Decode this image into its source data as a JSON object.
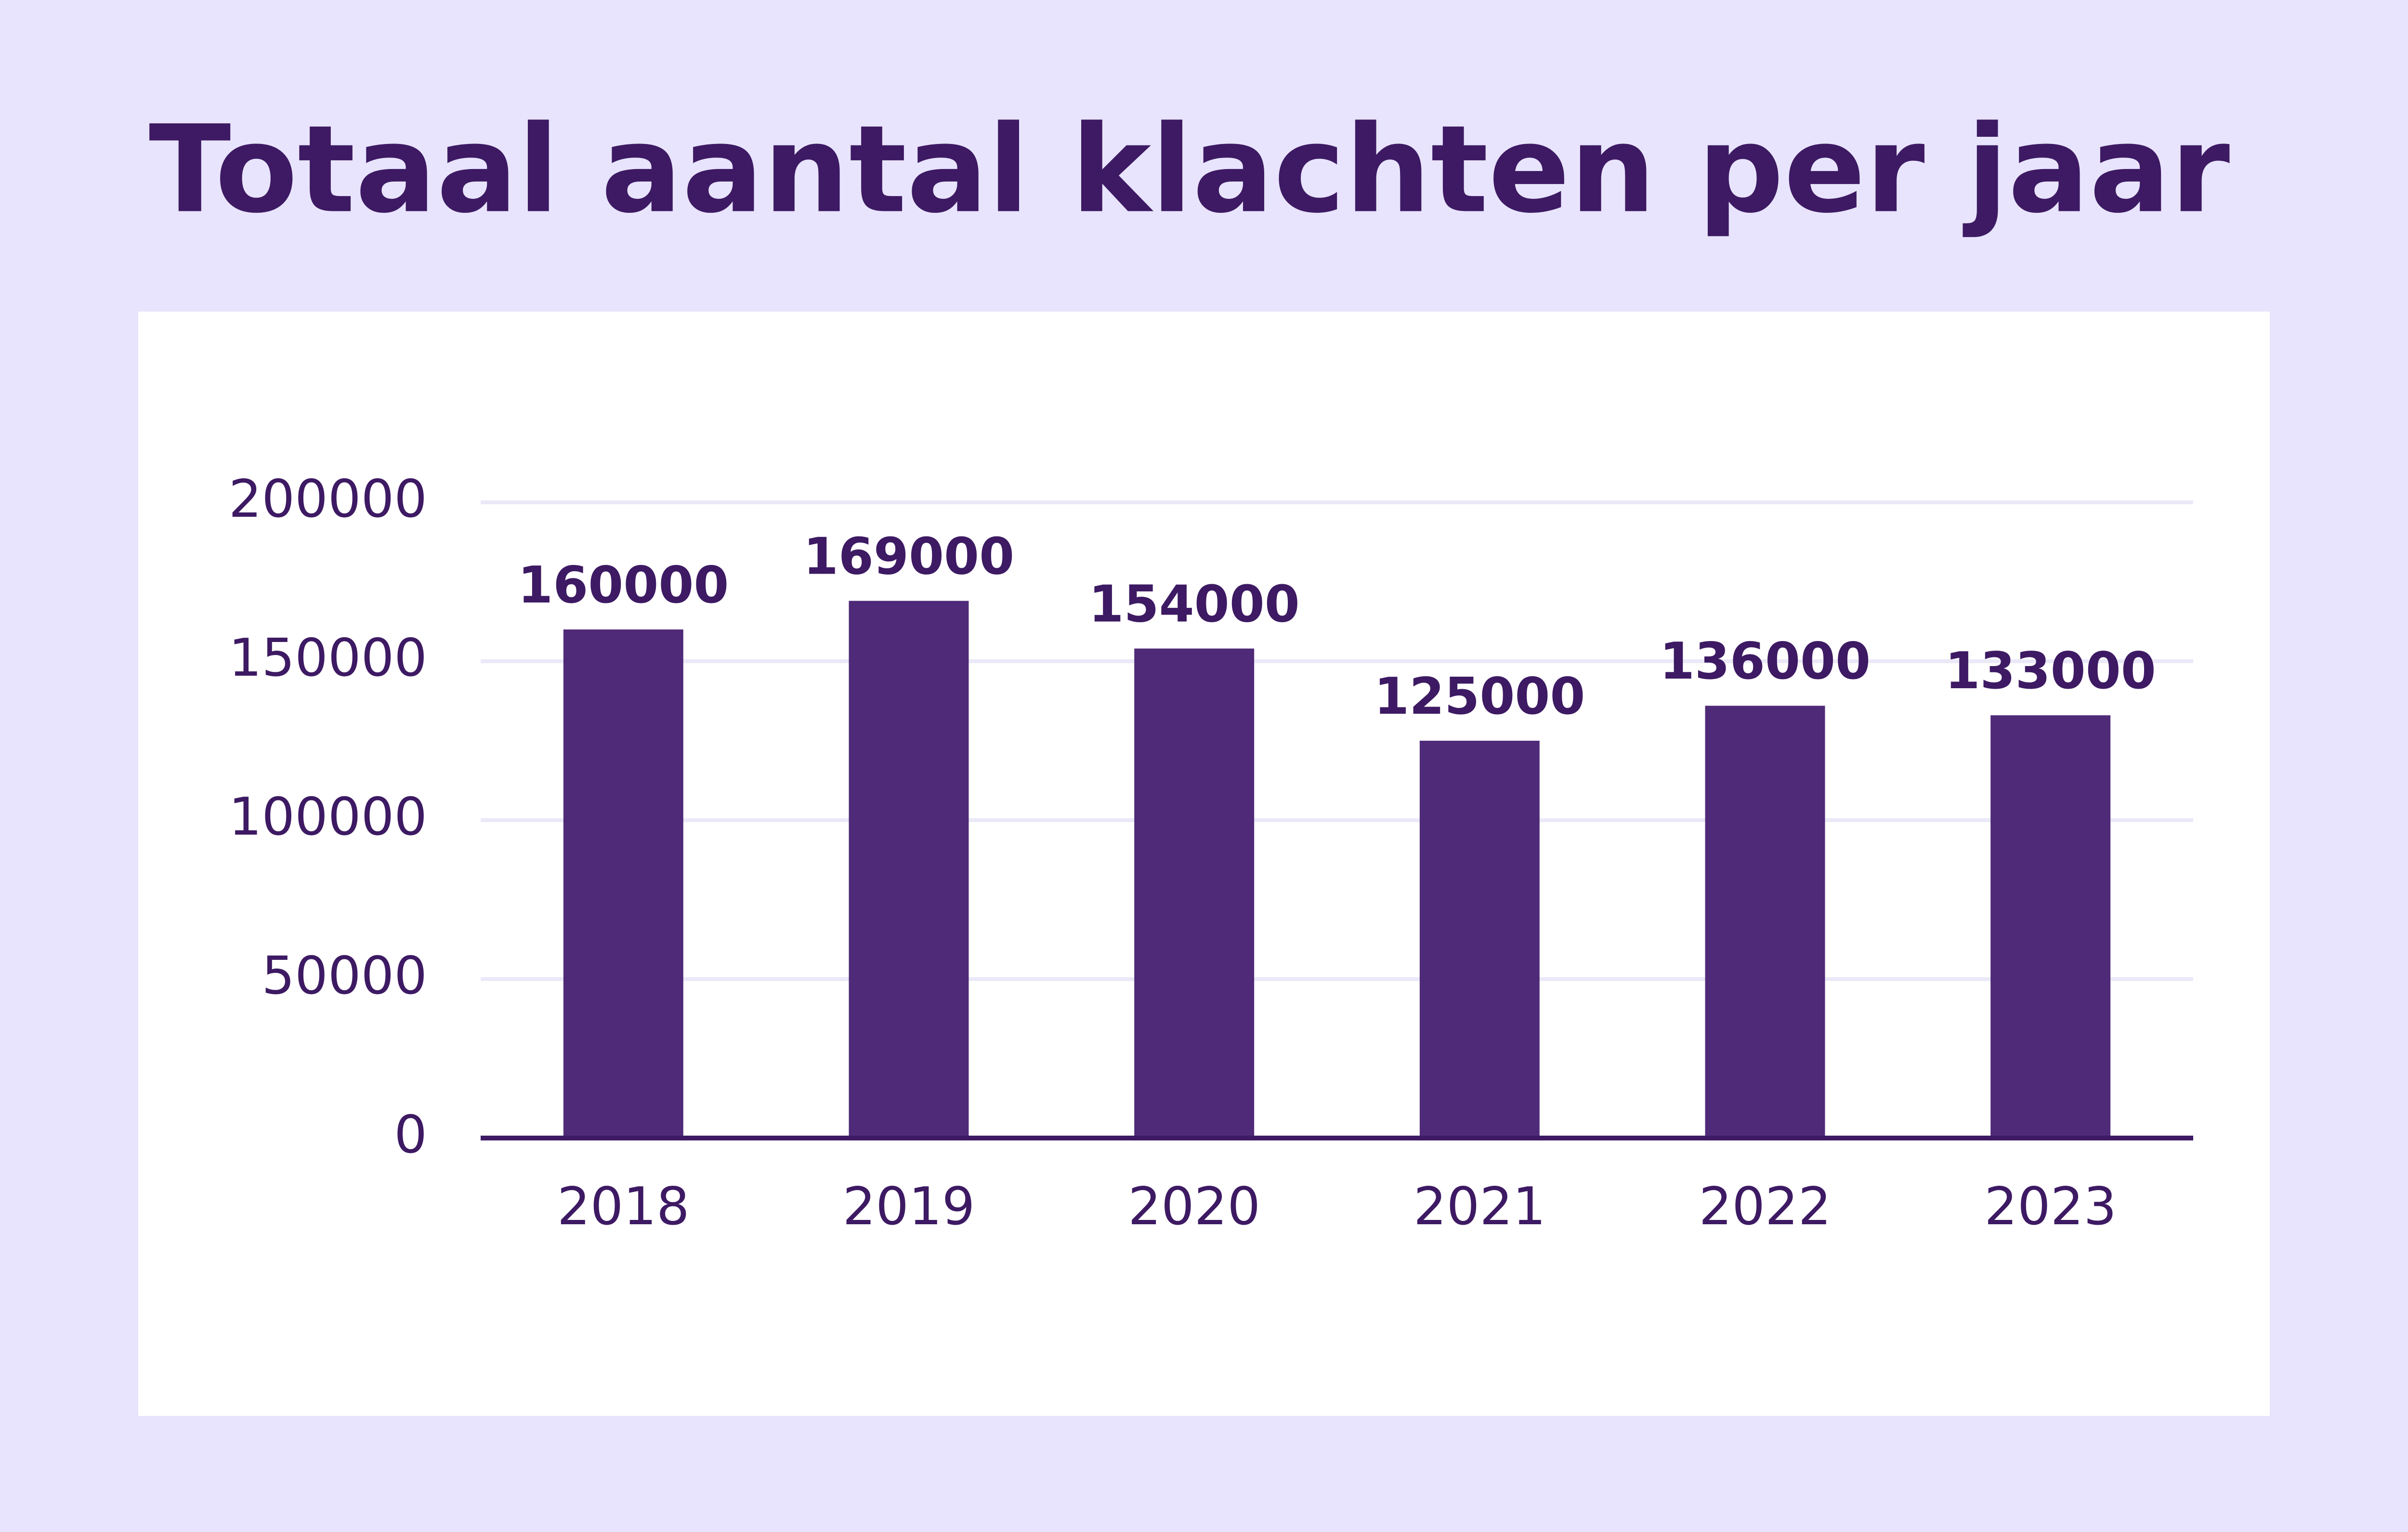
{
  "chart_data": {
    "type": "bar",
    "title": "Totaal aantal klachten per jaar",
    "categories": [
      "2018",
      "2019",
      "2020",
      "2021",
      "2022",
      "2023"
    ],
    "values": [
      160000,
      169000,
      154000,
      125000,
      136000,
      133000
    ],
    "color": "#4f2a78",
    "ylim": [
      0,
      200000
    ],
    "yticks": [
      0,
      50000,
      100000,
      150000,
      200000
    ],
    "grid": true
  }
}
